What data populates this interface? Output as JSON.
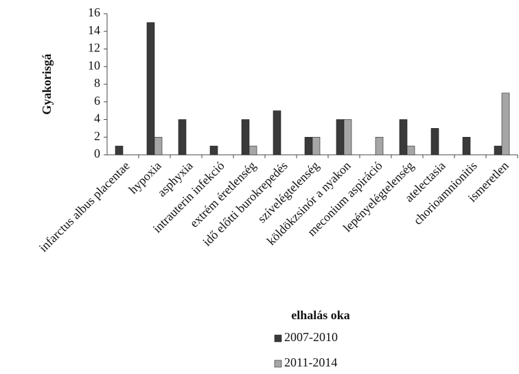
{
  "chart_data": {
    "type": "bar",
    "y_label": "Gyakorisgá",
    "x_label": "elhalás oka",
    "categories": [
      "infarctus albus placentae",
      "hypoxia",
      "asphyxia",
      "intrauterin infekció",
      "extrém éretlenség",
      "idő előtti burokrepedés",
      "szívelégtelenség",
      "köldökzsinór a nyakon",
      "meconium aspiráció",
      "lepényelégtelenség",
      "atelectasia",
      "chorioamnionitis",
      "ismeretlen"
    ],
    "series": [
      {
        "name": "2007-2010",
        "color": "#3a3a3a",
        "values": [
          1,
          15,
          4,
          1,
          4,
          5,
          2,
          4,
          0,
          4,
          3,
          2,
          1
        ]
      },
      {
        "name": "2011-2014",
        "color": "#a6a6a6",
        "values": [
          0,
          2,
          0,
          0,
          1,
          0,
          2,
          4,
          2,
          1,
          0,
          0,
          7
        ]
      }
    ],
    "ylim": [
      0,
      16
    ],
    "yticks": [
      0,
      2,
      4,
      6,
      8,
      10,
      12,
      14,
      16
    ],
    "grid": false
  }
}
